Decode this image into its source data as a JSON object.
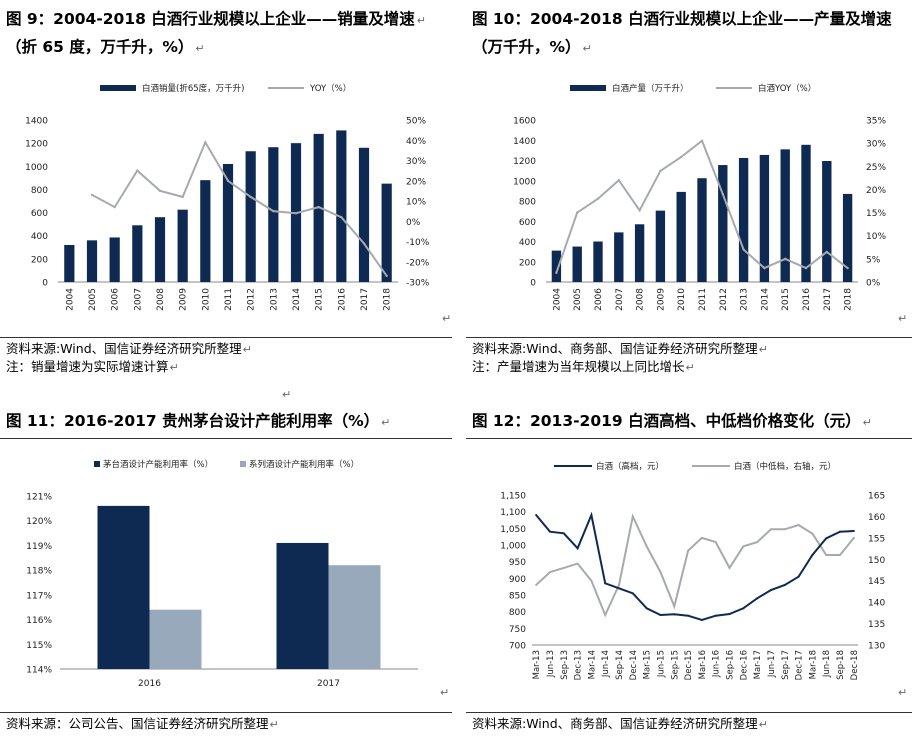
{
  "panels": [
    {
      "title_line1": "图 9：2004-2018 白酒行业规模以上企业——销量及增速",
      "title_line2": "（折 65 度，万千升，%）",
      "source": "资料来源:Wind、国信证券经济研究所整理",
      "note": "注：销量增速为实际增速计算"
    },
    {
      "title_line1": "图 10：2004-2018 白酒行业规模以上企业——产量及增速",
      "title_line2": "（万千升，%）",
      "source": "资料来源:Wind、商务部、国信证券经济研究所整理",
      "note": "注：产量增速为当年规模以上同比增长"
    },
    {
      "title_line1": "图 11：2016-2017 贵州茅台设计产能利用率（%）",
      "source": "资料来源：公司公告、国信证券经济研究所整理"
    },
    {
      "title_line1": "图 12：2013-2019 白酒高档、中低档价格变化（元）",
      "source": "资料来源:Wind、商务部、国信证券经济研究所整理"
    }
  ],
  "paragraph_mark": "↵",
  "colors": {
    "bar": "#0f2a52",
    "line": "#a6aaae",
    "bar2": "#98a9bc",
    "axis": "#888888"
  },
  "chart_data": [
    {
      "type": "bar",
      "categories": [
        "2004",
        "2005",
        "2006",
        "2007",
        "2008",
        "2009",
        "2010",
        "2011",
        "2012",
        "2013",
        "2014",
        "2015",
        "2016",
        "2017",
        "2018"
      ],
      "series": [
        {
          "name": "白酒销量(折65度，万千升)",
          "type": "bar",
          "axis": "left",
          "values": [
            320,
            360,
            385,
            490,
            560,
            625,
            880,
            1020,
            1130,
            1165,
            1200,
            1280,
            1310,
            1160,
            850
          ]
        },
        {
          "name": "YOY（%）",
          "type": "line",
          "axis": "right",
          "values": [
            null,
            13,
            7,
            25,
            15,
            12,
            39,
            20,
            12,
            5,
            4,
            7,
            2,
            -11,
            -27
          ]
        }
      ],
      "left_ticks": [
        0,
        200,
        400,
        600,
        800,
        1000,
        1200,
        1400
      ],
      "right_ticks": [
        "-30%",
        "-20%",
        "-10%",
        "0%",
        "10%",
        "20%",
        "30%",
        "40%",
        "50%"
      ],
      "ylim": [
        0,
        1400
      ],
      "y2lim": [
        -30,
        50
      ],
      "legend_position": "top"
    },
    {
      "type": "bar",
      "categories": [
        "2004",
        "2005",
        "2006",
        "2007",
        "2008",
        "2009",
        "2010",
        "2011",
        "2012",
        "2013",
        "2014",
        "2015",
        "2016",
        "2017",
        "2018"
      ],
      "series": [
        {
          "name": "白酒产量（万千升）",
          "type": "bar",
          "axis": "left",
          "values": [
            310,
            350,
            400,
            490,
            570,
            705,
            890,
            1025,
            1155,
            1225,
            1255,
            1310,
            1355,
            1195,
            870
          ]
        },
        {
          "name": "白酒YOY（%）",
          "type": "line",
          "axis": "right",
          "values": [
            2,
            15,
            18,
            22,
            15.5,
            24,
            27,
            30.5,
            19,
            7,
            3,
            5,
            3,
            6.5,
            3
          ]
        }
      ],
      "left_ticks": [
        0,
        200,
        400,
        600,
        800,
        1000,
        1200,
        1400,
        1600
      ],
      "right_ticks": [
        "0%",
        "5%",
        "10%",
        "15%",
        "20%",
        "25%",
        "30%",
        "35%"
      ],
      "ylim": [
        0,
        1600
      ],
      "y2lim": [
        0,
        35
      ],
      "legend_position": "top"
    },
    {
      "type": "bar",
      "categories": [
        "2016",
        "2017"
      ],
      "series": [
        {
          "name": "茅台酒设计产能利用率（%）",
          "values": [
            120.6,
            119.1
          ]
        },
        {
          "name": "系列酒设计产能利用率（%）",
          "values": [
            116.4,
            118.2
          ]
        }
      ],
      "left_ticks": [
        "114%",
        "115%",
        "116%",
        "117%",
        "118%",
        "119%",
        "120%",
        "121%"
      ],
      "ylim": [
        114,
        121
      ],
      "legend_position": "top"
    },
    {
      "type": "line",
      "categories": [
        "Mar-13",
        "Jun-13",
        "Sep-13",
        "Dec-13",
        "Mar-14",
        "Jun-14",
        "Sep-14",
        "Dec-14",
        "Mar-15",
        "Jun-15",
        "Sep-15",
        "Dec-15",
        "Mar-16",
        "Jun-16",
        "Sep-16",
        "Dec-16",
        "Mar-17",
        "Jun-17",
        "Sep-17",
        "Dec-17",
        "Mar-18",
        "Jun-18",
        "Sep-18",
        "Dec-18"
      ],
      "series": [
        {
          "name": "白酒（高档，元）",
          "axis": "left",
          "values": [
            1090,
            1040,
            1035,
            990,
            1090,
            885,
            870,
            855,
            810,
            790,
            792,
            788,
            775,
            788,
            793,
            810,
            840,
            865,
            880,
            905,
            970,
            1020,
            1040,
            1042
          ]
        },
        {
          "name": "白酒（中低档，右轴，元）",
          "axis": "right",
          "values": [
            144,
            147,
            148,
            149,
            145,
            137,
            144,
            160,
            153,
            147,
            139,
            152,
            155,
            154,
            148,
            153,
            154,
            157,
            157,
            158,
            156,
            151,
            151,
            155
          ]
        }
      ],
      "left_ticks": [
        "700",
        "750",
        "800",
        "850",
        "900",
        "950",
        "1,000",
        "1,050",
        "1,100",
        "1,150"
      ],
      "right_ticks": [
        130,
        135,
        140,
        145,
        150,
        155,
        160,
        165
      ],
      "ylim": [
        700,
        1150
      ],
      "y2lim": [
        130,
        165
      ],
      "legend_position": "top"
    }
  ]
}
